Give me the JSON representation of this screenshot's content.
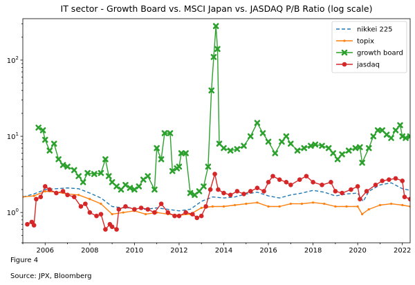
{
  "caption": "Figure 4",
  "source": "Source: JPX, Bloomberg",
  "chart_data": {
    "type": "line",
    "title": "IT sector - Growth Board vs. MSCI Japan vs. JASDAQ P/B Ratio (log scale)",
    "xlabel": "",
    "ylabel": "",
    "x_range": [
      2005.0,
      2022.35
    ],
    "y_scale": "log",
    "y_range": [
      0.4,
      350
    ],
    "x_ticks": [
      "2006",
      "2008",
      "2010",
      "2012",
      "2014",
      "2016",
      "2018",
      "2020",
      "2022"
    ],
    "y_ticks": [
      {
        "value": 1,
        "label": "10",
        "exp": "0"
      },
      {
        "value": 10,
        "label": "10",
        "exp": "1"
      },
      {
        "value": 100,
        "label": "10",
        "exp": "2"
      }
    ],
    "grid": false,
    "legend_position": "top-right",
    "series": [
      {
        "name": "nikkei 225",
        "color": "#1f77b4",
        "style": "dashed",
        "marker": "none",
        "points": [
          [
            2005.0,
            1.6
          ],
          [
            2005.5,
            1.75
          ],
          [
            2006.0,
            2.0
          ],
          [
            2006.5,
            2.05
          ],
          [
            2007.0,
            2.1
          ],
          [
            2007.5,
            2.05
          ],
          [
            2008.0,
            1.8
          ],
          [
            2008.5,
            1.55
          ],
          [
            2009.0,
            1.2
          ],
          [
            2009.5,
            1.15
          ],
          [
            2010.0,
            1.15
          ],
          [
            2010.5,
            1.1
          ],
          [
            2011.0,
            1.15
          ],
          [
            2011.5,
            1.1
          ],
          [
            2012.0,
            1.05
          ],
          [
            2012.5,
            1.1
          ],
          [
            2013.0,
            1.4
          ],
          [
            2013.5,
            1.6
          ],
          [
            2014.0,
            1.55
          ],
          [
            2014.5,
            1.6
          ],
          [
            2015.0,
            1.75
          ],
          [
            2015.5,
            1.85
          ],
          [
            2016.0,
            1.65
          ],
          [
            2016.5,
            1.55
          ],
          [
            2017.0,
            1.7
          ],
          [
            2017.5,
            1.8
          ],
          [
            2018.0,
            1.95
          ],
          [
            2018.5,
            1.85
          ],
          [
            2019.0,
            1.65
          ],
          [
            2019.5,
            1.75
          ],
          [
            2020.0,
            1.8
          ],
          [
            2020.25,
            1.4
          ],
          [
            2020.5,
            1.9
          ],
          [
            2021.0,
            2.3
          ],
          [
            2021.5,
            2.45
          ],
          [
            2022.0,
            2.05
          ],
          [
            2022.35,
            1.95
          ]
        ]
      },
      {
        "name": "topix",
        "color": "#ff7f0e",
        "style": "solid",
        "marker": "small-dot",
        "points": [
          [
            2005.0,
            1.6
          ],
          [
            2005.5,
            1.65
          ],
          [
            2006.0,
            1.9
          ],
          [
            2006.5,
            1.85
          ],
          [
            2007.0,
            1.75
          ],
          [
            2007.5,
            1.7
          ],
          [
            2008.0,
            1.5
          ],
          [
            2008.5,
            1.3
          ],
          [
            2009.0,
            0.95
          ],
          [
            2009.5,
            1.0
          ],
          [
            2010.0,
            1.05
          ],
          [
            2010.5,
            0.95
          ],
          [
            2011.0,
            1.0
          ],
          [
            2011.5,
            0.95
          ],
          [
            2012.0,
            0.92
          ],
          [
            2012.5,
            0.95
          ],
          [
            2013.0,
            1.15
          ],
          [
            2013.5,
            1.2
          ],
          [
            2014.0,
            1.2
          ],
          [
            2014.5,
            1.25
          ],
          [
            2015.0,
            1.3
          ],
          [
            2015.5,
            1.35
          ],
          [
            2016.0,
            1.2
          ],
          [
            2016.5,
            1.2
          ],
          [
            2017.0,
            1.3
          ],
          [
            2017.5,
            1.3
          ],
          [
            2018.0,
            1.35
          ],
          [
            2018.5,
            1.3
          ],
          [
            2019.0,
            1.2
          ],
          [
            2019.5,
            1.2
          ],
          [
            2020.0,
            1.2
          ],
          [
            2020.2,
            0.95
          ],
          [
            2020.5,
            1.1
          ],
          [
            2021.0,
            1.25
          ],
          [
            2021.5,
            1.3
          ],
          [
            2022.0,
            1.25
          ],
          [
            2022.35,
            1.2
          ]
        ]
      },
      {
        "name": "growth board",
        "color": "#2ca02c",
        "style": "solid",
        "marker": "x-thick",
        "points": [
          [
            2005.7,
            13.0
          ],
          [
            2005.9,
            12.0
          ],
          [
            2006.0,
            9.0
          ],
          [
            2006.2,
            6.5
          ],
          [
            2006.4,
            8.0
          ],
          [
            2006.6,
            5.0
          ],
          [
            2006.8,
            4.2
          ],
          [
            2007.0,
            4.0
          ],
          [
            2007.3,
            3.6
          ],
          [
            2007.5,
            3.0
          ],
          [
            2007.7,
            2.5
          ],
          [
            2007.9,
            3.3
          ],
          [
            2008.2,
            3.2
          ],
          [
            2008.5,
            3.3
          ],
          [
            2008.7,
            5.0
          ],
          [
            2008.85,
            3.0
          ],
          [
            2009.0,
            2.5
          ],
          [
            2009.2,
            2.2
          ],
          [
            2009.4,
            2.0
          ],
          [
            2009.6,
            2.3
          ],
          [
            2009.8,
            2.1
          ],
          [
            2010.0,
            2.0
          ],
          [
            2010.2,
            2.2
          ],
          [
            2010.4,
            2.7
          ],
          [
            2010.6,
            3.0
          ],
          [
            2010.9,
            2.0
          ],
          [
            2011.0,
            7.0
          ],
          [
            2011.2,
            5.0
          ],
          [
            2011.35,
            11.0
          ],
          [
            2011.6,
            11.0
          ],
          [
            2011.7,
            3.5
          ],
          [
            2011.9,
            3.8
          ],
          [
            2012.0,
            4.0
          ],
          [
            2012.1,
            6.0
          ],
          [
            2012.3,
            6.0
          ],
          [
            2012.5,
            1.8
          ],
          [
            2012.7,
            1.7
          ],
          [
            2012.9,
            1.9
          ],
          [
            2013.1,
            2.2
          ],
          [
            2013.3,
            4.0
          ],
          [
            2013.45,
            40.0
          ],
          [
            2013.55,
            110.0
          ],
          [
            2013.65,
            280.0
          ],
          [
            2013.72,
            140.0
          ],
          [
            2013.8,
            8.0
          ],
          [
            2014.0,
            7.0
          ],
          [
            2014.3,
            6.5
          ],
          [
            2014.6,
            6.8
          ],
          [
            2014.9,
            7.5
          ],
          [
            2015.2,
            10.0
          ],
          [
            2015.5,
            15.0
          ],
          [
            2015.75,
            11.0
          ],
          [
            2016.0,
            8.5
          ],
          [
            2016.3,
            6.0
          ],
          [
            2016.6,
            8.5
          ],
          [
            2016.8,
            10.0
          ],
          [
            2017.0,
            8.0
          ],
          [
            2017.3,
            6.5
          ],
          [
            2017.6,
            7.0
          ],
          [
            2017.9,
            7.5
          ],
          [
            2018.1,
            7.8
          ],
          [
            2018.4,
            7.5
          ],
          [
            2018.7,
            7.0
          ],
          [
            2018.9,
            6.0
          ],
          [
            2019.1,
            5.0
          ],
          [
            2019.3,
            5.8
          ],
          [
            2019.6,
            6.5
          ],
          [
            2019.9,
            7.0
          ],
          [
            2020.1,
            7.2
          ],
          [
            2020.2,
            4.5
          ],
          [
            2020.5,
            7.0
          ],
          [
            2020.7,
            10.0
          ],
          [
            2020.9,
            12.0
          ],
          [
            2021.1,
            12.0
          ],
          [
            2021.3,
            10.5
          ],
          [
            2021.5,
            9.5
          ],
          [
            2021.7,
            12.0
          ],
          [
            2021.9,
            14.0
          ],
          [
            2022.0,
            10.0
          ],
          [
            2022.15,
            9.5
          ],
          [
            2022.35,
            10.0
          ]
        ]
      },
      {
        "name": "jasdaq",
        "color": "#d62728",
        "style": "solid",
        "marker": "dot",
        "points": [
          [
            2005.2,
            0.7
          ],
          [
            2005.4,
            0.75
          ],
          [
            2005.5,
            0.68
          ],
          [
            2005.6,
            1.5
          ],
          [
            2005.8,
            1.6
          ],
          [
            2006.0,
            2.2
          ],
          [
            2006.2,
            2.0
          ],
          [
            2006.5,
            1.8
          ],
          [
            2006.8,
            1.9
          ],
          [
            2007.0,
            1.7
          ],
          [
            2007.3,
            1.6
          ],
          [
            2007.6,
            1.2
          ],
          [
            2007.8,
            1.3
          ],
          [
            2008.0,
            1.0
          ],
          [
            2008.3,
            0.9
          ],
          [
            2008.5,
            0.95
          ],
          [
            2008.7,
            0.6
          ],
          [
            2008.9,
            0.7
          ],
          [
            2009.0,
            0.65
          ],
          [
            2009.2,
            0.6
          ],
          [
            2009.3,
            1.1
          ],
          [
            2009.6,
            1.2
          ],
          [
            2010.0,
            1.1
          ],
          [
            2010.3,
            1.15
          ],
          [
            2010.6,
            1.1
          ],
          [
            2010.9,
            1.0
          ],
          [
            2011.2,
            1.3
          ],
          [
            2011.5,
            1.0
          ],
          [
            2011.8,
            0.9
          ],
          [
            2012.0,
            0.9
          ],
          [
            2012.3,
            1.0
          ],
          [
            2012.6,
            0.95
          ],
          [
            2012.8,
            0.85
          ],
          [
            2013.0,
            0.9
          ],
          [
            2013.2,
            1.2
          ],
          [
            2013.4,
            2.0
          ],
          [
            2013.6,
            3.2
          ],
          [
            2013.75,
            2.0
          ],
          [
            2014.0,
            1.8
          ],
          [
            2014.3,
            1.7
          ],
          [
            2014.6,
            1.9
          ],
          [
            2014.9,
            1.75
          ],
          [
            2015.2,
            1.9
          ],
          [
            2015.5,
            2.1
          ],
          [
            2015.8,
            1.9
          ],
          [
            2016.0,
            2.5
          ],
          [
            2016.2,
            3.0
          ],
          [
            2016.5,
            2.7
          ],
          [
            2016.8,
            2.5
          ],
          [
            2017.0,
            2.3
          ],
          [
            2017.4,
            2.7
          ],
          [
            2017.7,
            3.0
          ],
          [
            2018.0,
            2.5
          ],
          [
            2018.4,
            2.3
          ],
          [
            2018.8,
            2.5
          ],
          [
            2019.0,
            1.9
          ],
          [
            2019.3,
            1.8
          ],
          [
            2019.7,
            2.0
          ],
          [
            2020.0,
            2.2
          ],
          [
            2020.1,
            1.5
          ],
          [
            2020.4,
            1.9
          ],
          [
            2020.8,
            2.3
          ],
          [
            2021.1,
            2.6
          ],
          [
            2021.4,
            2.7
          ],
          [
            2021.7,
            2.8
          ],
          [
            2022.0,
            2.6
          ],
          [
            2022.1,
            1.6
          ],
          [
            2022.35,
            1.5
          ]
        ]
      }
    ]
  }
}
